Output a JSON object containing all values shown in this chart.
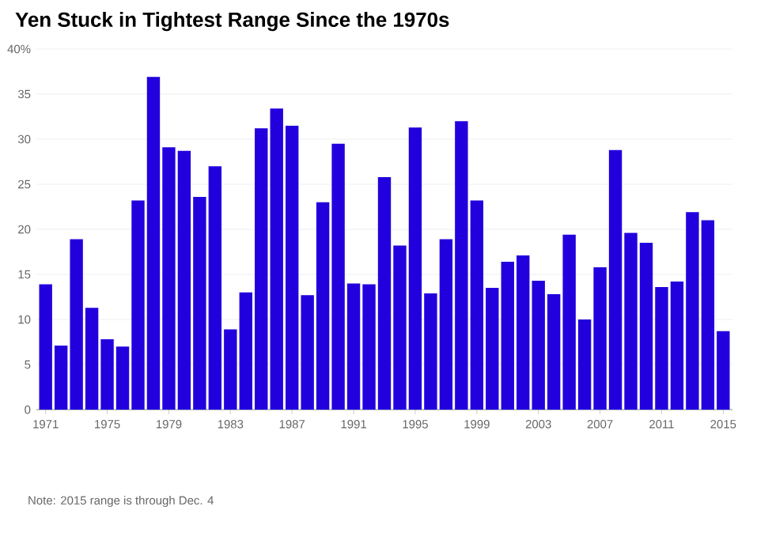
{
  "chart_data": {
    "type": "bar",
    "title": "Yen Stuck in Tightest Range Since the 1970s",
    "categories": [
      "1971",
      null,
      null,
      null,
      "1975",
      null,
      null,
      null,
      "1979",
      null,
      null,
      null,
      "1983",
      null,
      null,
      null,
      "1987",
      null,
      null,
      null,
      "1991",
      null,
      null,
      null,
      "1995",
      null,
      null,
      null,
      "1999",
      null,
      null,
      null,
      "2003",
      null,
      null,
      null,
      "2007",
      null,
      null,
      null,
      "2011",
      null,
      null,
      null,
      "2015"
    ],
    "values": [
      13.9,
      7.1,
      18.9,
      11.3,
      7.8,
      7.0,
      23.2,
      36.9,
      29.1,
      28.7,
      23.6,
      27.0,
      8.9,
      13.0,
      31.2,
      33.4,
      31.5,
      12.7,
      23.0,
      29.5,
      14.0,
      13.9,
      25.8,
      18.2,
      31.3,
      12.9,
      18.9,
      32.0,
      23.2,
      13.5,
      16.4,
      17.1,
      14.3,
      12.8,
      19.4,
      10.0,
      15.8,
      28.8,
      19.6,
      18.5,
      13.6,
      14.2,
      21.9,
      21.0,
      8.7
    ],
    "color": "#2200dd",
    "ylim": [
      0,
      40
    ],
    "yticks": [
      0,
      5,
      10,
      15,
      20,
      25,
      30,
      35,
      {
        "value": 40,
        "label": "40%"
      }
    ],
    "grid": "y",
    "annotations": [
      "Note: 2015 range is through Dec. 4"
    ]
  }
}
